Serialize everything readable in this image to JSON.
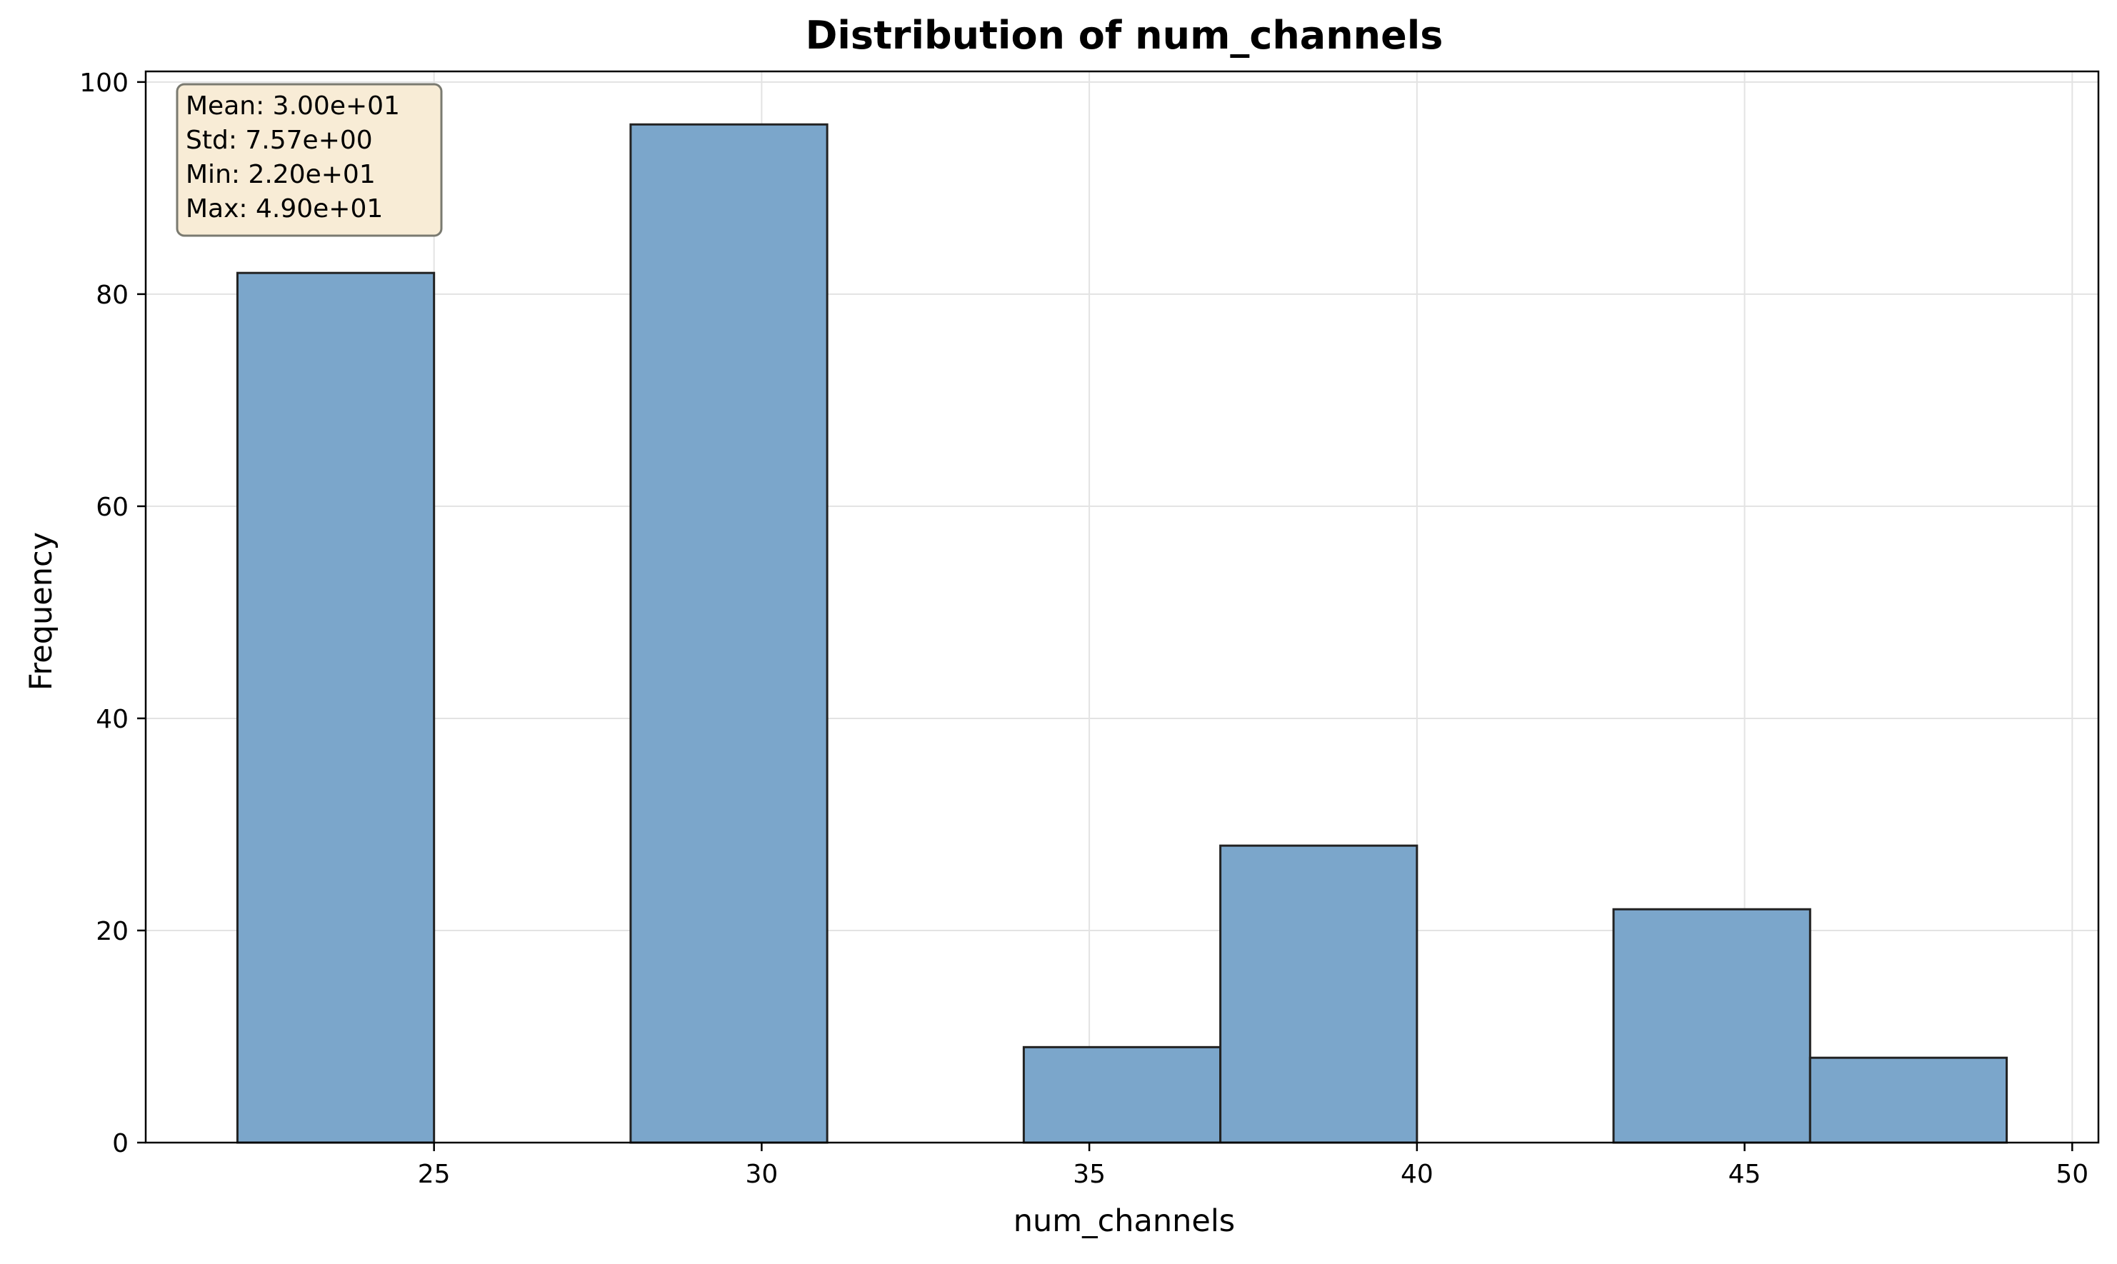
{
  "chart_data": {
    "type": "bar",
    "title": "Distribution of num_channels",
    "xlabel": "num_channels",
    "ylabel": "Frequency",
    "xlim": [
      20.6,
      50.4
    ],
    "ylim": [
      0,
      101
    ],
    "xticks": [
      25,
      30,
      35,
      40,
      45,
      50
    ],
    "yticks": [
      0,
      20,
      40,
      60,
      80,
      100
    ],
    "grid": true,
    "bins": [
      {
        "x0": 22,
        "x1": 25,
        "count": 82
      },
      {
        "x0": 25,
        "x1": 28,
        "count": 0
      },
      {
        "x0": 28,
        "x1": 31,
        "count": 96
      },
      {
        "x0": 31,
        "x1": 34,
        "count": 0
      },
      {
        "x0": 34,
        "x1": 37,
        "count": 9
      },
      {
        "x0": 37,
        "x1": 40,
        "count": 28
      },
      {
        "x0": 40,
        "x1": 43,
        "count": 0
      },
      {
        "x0": 43,
        "x1": 46,
        "count": 22
      },
      {
        "x0": 46,
        "x1": 49,
        "count": 8
      }
    ],
    "colors": {
      "bar_fill": "#7ba6cb",
      "bar_edge": "#222222",
      "grid": "#e3e3e3",
      "stats_box_fill": "#f8ecd6",
      "stats_box_edge": "#7a7a70"
    },
    "stats_box": {
      "placement": "top-left",
      "lines": [
        "Mean: 3.00e+01",
        "Std: 7.57e+00",
        "Min: 2.20e+01",
        "Max: 4.90e+01"
      ]
    }
  }
}
